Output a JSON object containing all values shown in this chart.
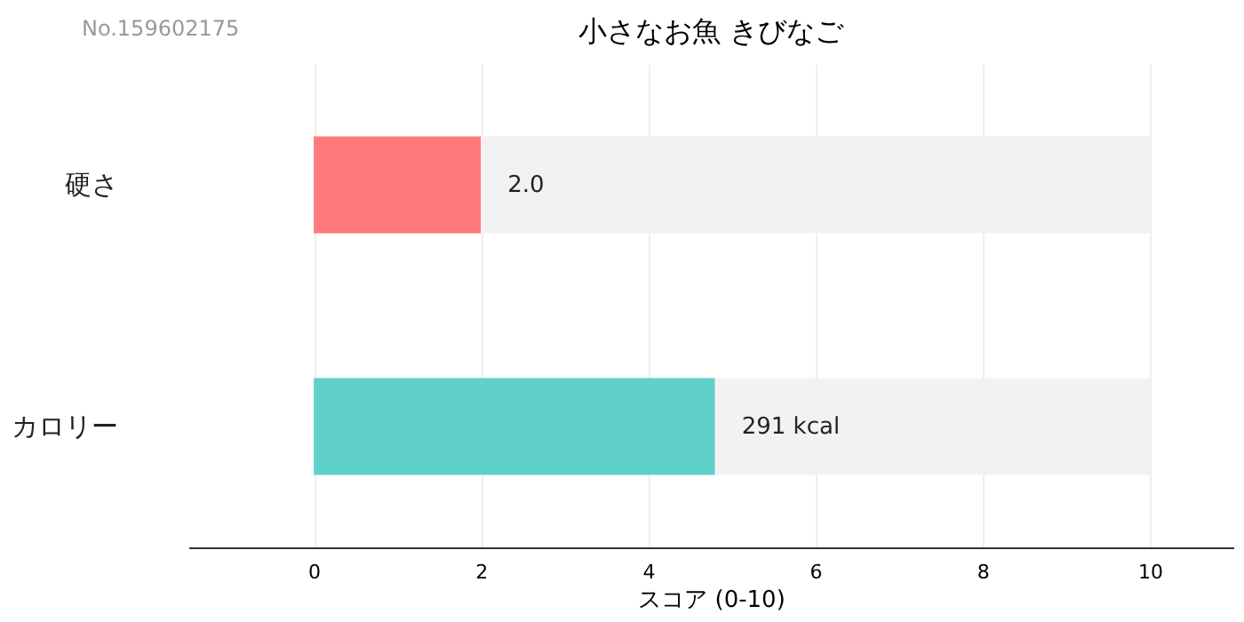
{
  "chart_data": {
    "type": "bar",
    "orientation": "horizontal",
    "stacked": true,
    "title": "小さなお魚 きびなご",
    "xlabel": "スコア (0-10)",
    "annotations": [
      "No.159602175",
      {
        "text": "291 kcal",
        "x": 4.8,
        "y": "カロリー"
      }
    ],
    "categories": [
      "硬さ",
      "カロリー"
    ],
    "series": [
      {
        "colors": [
          "#ff7b7b",
          "#5fd1c8"
        ],
        "values": [
          2.0,
          4.8
        ],
        "value_labels": [
          "2.0",
          null
        ]
      },
      {
        "color": "#f2f2f2",
        "values": [
          8.0,
          5.2
        ]
      }
    ],
    "xlim": [
      -1.5,
      11
    ],
    "xticks": [
      0,
      2,
      4,
      6,
      8,
      10
    ],
    "grid": "x"
  }
}
